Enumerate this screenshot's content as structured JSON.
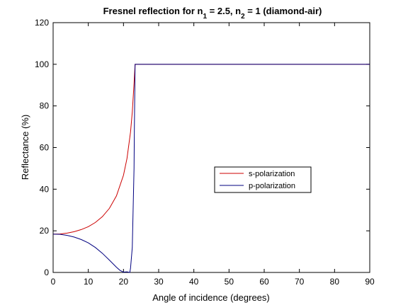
{
  "chart_data": {
    "type": "line",
    "title": {
      "base": "Fresnel reflection for n",
      "sub1": "1",
      "mid": " = 2.5, n",
      "sub2": "2",
      "tail": " = 1 (diamond-air)"
    },
    "xlabel": "Angle of incidence (degrees)",
    "ylabel": "Reflectance (%)",
    "xlim": [
      0,
      90
    ],
    "ylim": [
      0,
      120
    ],
    "x_ticks": [
      "0",
      "10",
      "20",
      "30",
      "40",
      "50",
      "60",
      "70",
      "80",
      "90"
    ],
    "y_ticks": [
      "0",
      "20",
      "40",
      "60",
      "80",
      "100",
      "120"
    ],
    "grid": false,
    "legend_position": "center-right",
    "series": [
      {
        "name": "s-polarization",
        "color": "#cc0000",
        "points": [
          [
            0,
            18.4
          ],
          [
            2,
            18.5
          ],
          [
            4,
            18.9
          ],
          [
            6,
            19.6
          ],
          [
            8,
            20.6
          ],
          [
            10,
            22.0
          ],
          [
            12,
            24.0
          ],
          [
            14,
            26.8
          ],
          [
            16,
            30.8
          ],
          [
            18,
            36.8
          ],
          [
            20,
            46.7
          ],
          [
            21,
            54.8
          ],
          [
            22,
            67.4
          ],
          [
            22.5,
            77.0
          ],
          [
            23,
            90.8
          ],
          [
            23.1,
            94.0
          ],
          [
            23.2,
            97.0
          ],
          [
            23.3,
            100
          ],
          [
            24,
            100
          ],
          [
            30,
            100
          ],
          [
            40,
            100
          ],
          [
            50,
            100
          ],
          [
            60,
            100
          ],
          [
            70,
            100
          ],
          [
            80,
            100
          ],
          [
            90,
            100
          ]
        ]
      },
      {
        "name": "p-polarization",
        "color": "#000080",
        "points": [
          [
            0,
            18.4
          ],
          [
            2,
            18.3
          ],
          [
            4,
            17.8
          ],
          [
            6,
            17.0
          ],
          [
            8,
            15.8
          ],
          [
            10,
            14.2
          ],
          [
            12,
            12.0
          ],
          [
            14,
            9.2
          ],
          [
            16,
            5.9
          ],
          [
            18,
            2.5
          ],
          [
            19,
            1.0
          ],
          [
            20,
            0.15
          ],
          [
            21,
            0.3
          ],
          [
            21.8,
            0.0
          ],
          [
            22,
            2.0
          ],
          [
            22.5,
            12.0
          ],
          [
            23,
            50.0
          ],
          [
            23.1,
            70.0
          ],
          [
            23.2,
            85.0
          ],
          [
            23.3,
            100
          ],
          [
            24,
            100
          ],
          [
            30,
            100
          ],
          [
            40,
            100
          ],
          [
            50,
            100
          ],
          [
            60,
            100
          ],
          [
            70,
            100
          ],
          [
            80,
            100
          ],
          [
            90,
            100
          ]
        ]
      }
    ]
  }
}
